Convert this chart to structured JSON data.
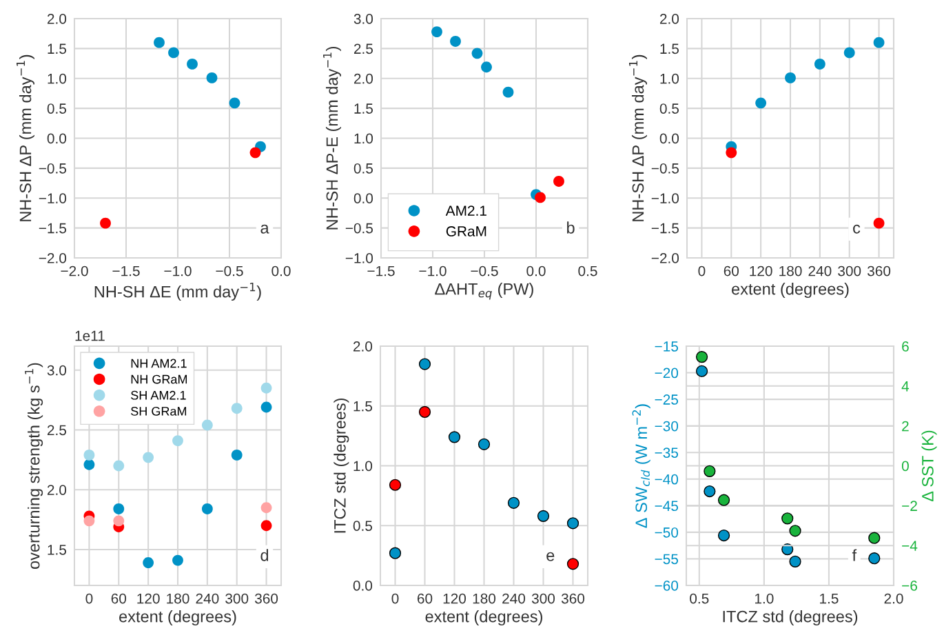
{
  "chart_data": [
    {
      "type": "scatter",
      "xlabel": "NH-SH ΔE (mm day$^{−1}$)",
      "ylabel": "NH-SH ΔP (mm day$^{−1}$)",
      "annotations": [
        "a"
      ],
      "grid": true,
      "legend": false,
      "marker": "circle",
      "xlim": [
        -2.0,
        0.0
      ],
      "xticks": [
        {
          "value": -2,
          "label": "−2.0"
        },
        {
          "value": -1.5,
          "label": "−1.5"
        },
        {
          "value": -1,
          "label": "−1.0"
        },
        {
          "value": -0.5,
          "label": "−0.5"
        },
        {
          "value": 0,
          "label": "0.0"
        }
      ],
      "ylim": [
        -2.0,
        2.0
      ],
      "yticks": [
        {
          "value": -2,
          "label": "−2.0"
        },
        {
          "value": -1.5,
          "label": "−1.5"
        },
        {
          "value": -1,
          "label": "−1.0"
        },
        {
          "value": -0.5,
          "label": "−0.5"
        },
        {
          "value": 0,
          "label": "0.0"
        },
        0.5,
        {
          "value": 1,
          "label": "1.0"
        },
        1.5,
        {
          "value": 2,
          "label": "2.0"
        }
      ],
      "series": [
        {
          "color": "#0092c6",
          "x": [
            -1.18,
            -1.04,
            -0.86,
            -0.67,
            -0.45,
            -0.2
          ],
          "values": [
            1.6,
            1.43,
            1.24,
            1.01,
            0.59,
            -0.14
          ]
        },
        {
          "color": "#ff0000",
          "x": [
            -1.7,
            -0.25
          ],
          "values": [
            -1.42,
            -0.24
          ]
        }
      ]
    },
    {
      "type": "scatter",
      "xlabel": "ΔAHT$_{eq}$ (PW)",
      "ylabel": "NH-SH ΔP-E (mm day$^{−1}$)",
      "annotations": [
        "b"
      ],
      "grid": true,
      "legend": "bottom left",
      "marker": "circle",
      "xlim": [
        -1.5,
        0.5
      ],
      "xticks": [
        {
          "value": -1.5,
          "label": "−1.5"
        },
        {
          "value": -1,
          "label": "−1.0"
        },
        {
          "value": -0.5,
          "label": "−0.5"
        },
        {
          "value": 0,
          "label": "0.0"
        },
        0.5
      ],
      "ylim": [
        -1.0,
        3.0
      ],
      "yticks": [
        {
          "value": -1,
          "label": "−1.0"
        },
        {
          "value": -0.5,
          "label": "−0.5"
        },
        {
          "value": 0,
          "label": "0.0"
        },
        0.5,
        {
          "value": 1,
          "label": "1.0"
        },
        1.5,
        {
          "value": 2,
          "label": "2.0"
        },
        2.5,
        {
          "value": 3,
          "label": "3.0"
        }
      ],
      "series": [
        {
          "name": "AM2.1",
          "color": "#0092c6",
          "x": [
            -0.96,
            -0.78,
            -0.57,
            -0.48,
            -0.27,
            0.0
          ],
          "values": [
            2.78,
            2.62,
            2.42,
            2.19,
            1.77,
            0.06
          ]
        },
        {
          "name": "GRaM",
          "color": "#ff0000",
          "x": [
            0.04,
            0.22
          ],
          "values": [
            0.01,
            0.28
          ]
        }
      ]
    },
    {
      "type": "scatter",
      "xlabel": "extent (degrees)",
      "ylabel": "NH-SH ΔP (mm day$^{−1}$)",
      "annotations": [
        "c"
      ],
      "grid": true,
      "legend": false,
      "marker": "circle",
      "xlim": [
        -30,
        390
      ],
      "xticks": [
        0,
        60,
        120,
        180,
        240,
        300,
        360
      ],
      "ylim": [
        -2.0,
        2.0
      ],
      "yticks": [
        {
          "value": -2,
          "label": "−2.0"
        },
        {
          "value": -1.5,
          "label": "−1.5"
        },
        {
          "value": -1,
          "label": "−1.0"
        },
        {
          "value": -0.5,
          "label": "−0.5"
        },
        {
          "value": 0,
          "label": "0.0"
        },
        0.5,
        {
          "value": 1,
          "label": "1.0"
        },
        1.5,
        {
          "value": 2,
          "label": "2.0"
        }
      ],
      "series": [
        {
          "color": "#0092c6",
          "x": [
            60,
            120,
            180,
            240,
            300,
            360
          ],
          "values": [
            -0.14,
            0.59,
            1.01,
            1.24,
            1.43,
            1.6
          ]
        },
        {
          "color": "#ff0000",
          "x": [
            60,
            360
          ],
          "values": [
            -0.24,
            -1.42
          ]
        }
      ]
    },
    {
      "type": "scatter",
      "xlabel": "extent (degrees)",
      "ylabel": "overturning strength (kg s$^{−1}$)",
      "annotations": [
        "1e11",
        "d"
      ],
      "grid": true,
      "legend": "top left",
      "marker": "circle",
      "xlim": [
        -30,
        390
      ],
      "xticks": [
        0,
        60,
        120,
        180,
        240,
        300,
        360
      ],
      "ylim": [
        1.2,
        3.2
      ],
      "yticks": [
        1.5,
        {
          "value": 2,
          "label": "2.0"
        },
        2.5,
        {
          "value": 3,
          "label": "3.0"
        }
      ],
      "series": [
        {
          "name": "NH AM2.1",
          "color": "#0092c6",
          "x": [
            0,
            60,
            120,
            180,
            240,
            300,
            360
          ],
          "values": [
            2.21,
            1.84,
            1.39,
            1.41,
            1.84,
            2.29,
            2.69
          ]
        },
        {
          "name": "NH GRaM",
          "color": "#ff0000",
          "x": [
            0,
            60,
            360
          ],
          "values": [
            1.78,
            1.69,
            1.7
          ]
        },
        {
          "name": "SH AM2.1",
          "color": "#a0d9ea",
          "x": [
            0,
            60,
            120,
            180,
            240,
            300,
            360
          ],
          "values": [
            2.29,
            2.2,
            2.27,
            2.41,
            2.54,
            2.68,
            2.85
          ]
        },
        {
          "name": "SH GRaM",
          "color": "#ffa3a3",
          "x": [
            0,
            60,
            360
          ],
          "values": [
            1.74,
            1.74,
            1.85
          ]
        }
      ]
    },
    {
      "type": "scatter",
      "xlabel": "extent (degrees)",
      "ylabel": "ITCZ std (degrees)",
      "annotations": [
        "e"
      ],
      "grid": true,
      "legend": false,
      "marker": "circle",
      "xlim": [
        -30,
        390
      ],
      "xticks": [
        0,
        60,
        120,
        180,
        240,
        300,
        360
      ],
      "ylim": [
        0.0,
        2.0
      ],
      "yticks": [
        {
          "value": 0,
          "label": "0.0"
        },
        0.5,
        {
          "value": 1,
          "label": "1.0"
        },
        1.5,
        {
          "value": 2,
          "label": "2.0"
        }
      ],
      "series": [
        {
          "color": "#0092c6",
          "x": [
            0,
            60,
            120,
            180,
            240,
            300,
            360
          ],
          "values": [
            0.27,
            1.85,
            1.24,
            1.18,
            0.69,
            0.58,
            0.52
          ]
        },
        {
          "color": "#ff0000",
          "x": [
            0,
            60,
            360
          ],
          "values": [
            0.84,
            1.45,
            0.18
          ]
        }
      ]
    },
    {
      "type": "scatter",
      "xlabel": "ITCZ std (degrees)",
      "ylabel": "Δ SW$_{cld}$ (W m$^{−2}$)",
      "y2label": "Δ SST (K)",
      "annotations": [
        "f"
      ],
      "grid": true,
      "legend": false,
      "marker": "circle",
      "xlim": [
        0.4,
        2.0
      ],
      "xticks": [
        0.5,
        {
          "value": 1,
          "label": "1.0"
        },
        1.5,
        {
          "value": 2,
          "label": "2.0"
        }
      ],
      "ylim": [
        -60,
        -15
      ],
      "yticks": [
        {
          "value": -60,
          "label": "−60"
        },
        {
          "value": -55,
          "label": "−55"
        },
        {
          "value": -50,
          "label": "−50"
        },
        {
          "value": -45,
          "label": "−45"
        },
        {
          "value": -40,
          "label": "−40"
        },
        {
          "value": -35,
          "label": "−35"
        },
        {
          "value": -30,
          "label": "−30"
        },
        {
          "value": -25,
          "label": "−25"
        },
        {
          "value": -20,
          "label": "−20"
        },
        {
          "value": -15,
          "label": "−15"
        }
      ],
      "y2lim": [
        -6,
        6
      ],
      "y2ticks": [
        {
          "value": -6,
          "label": "−6"
        },
        {
          "value": -4,
          "label": "−4"
        },
        {
          "value": -2,
          "label": "−2"
        },
        0,
        2,
        4,
        6
      ],
      "series": [
        {
          "color": "#0092c6",
          "x": [
            0.52,
            0.58,
            0.69,
            1.18,
            1.24,
            1.85
          ],
          "values": [
            -19.7,
            -42.3,
            -50.6,
            -53.2,
            -55.5,
            -54.9
          ]
        },
        {
          "color": "#19b33c",
          "axis": "y2",
          "x": [
            0.52,
            0.58,
            0.69,
            1.18,
            1.24,
            1.85
          ],
          "values": [
            5.46,
            -0.27,
            -1.72,
            -2.64,
            -3.26,
            -3.62
          ]
        }
      ]
    }
  ]
}
